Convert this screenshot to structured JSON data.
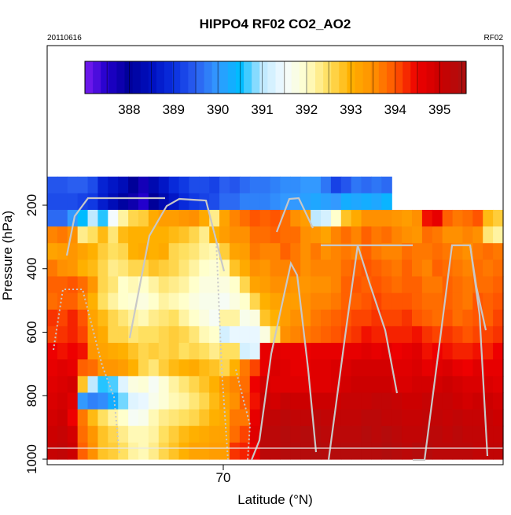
{
  "chart_data": {
    "type": "heatmap",
    "title": "HIPPO4 RF02 CO2_AO2",
    "date": "20110616",
    "flight": "RF02",
    "xlabel": "Latitude (°N)",
    "ylabel": "Pressure (hPa)",
    "x_ticks": [
      70
    ],
    "y_ticks": [
      200,
      400,
      600,
      800,
      1000
    ],
    "ylim": [
      100,
      1000
    ],
    "y_reversed": true,
    "grid": false,
    "legend": "colorbar-top",
    "colorbar": {
      "min": 387,
      "max": 395.6,
      "tick_values": [
        388,
        389,
        390,
        391,
        392,
        393,
        394,
        395
      ],
      "tick_labels": [
        "388",
        "389",
        "390",
        "391",
        "392",
        "393",
        "394",
        "395"
      ]
    },
    "cells_pressure_range": [
      110,
      1000
    ],
    "column_values": [
      {
        "top": 200,
        "vals": [
          389.4,
          389.3,
          389.6,
          393.6,
          393.2,
          393.7,
          393.9,
          393.8,
          394.2,
          394.1,
          394.5,
          394.6,
          394.7,
          394.8,
          394.9,
          395.0,
          395.1
        ]
      },
      {
        "top": 200,
        "vals": [
          389.4,
          389.3,
          389.6,
          393.7,
          393.3,
          393.5,
          393.9,
          393.9,
          394.1,
          394.2,
          394.4,
          394.7,
          394.8,
          394.9,
          395.0,
          395.1,
          395.2
        ]
      },
      {
        "top": 200,
        "vals": [
          389.5,
          389.3,
          390.0,
          393.5,
          393.4,
          393.4,
          394.0,
          393.9,
          394.3,
          394.3,
          394.5,
          394.6,
          394.9,
          394.7,
          394.5,
          394.9,
          395.0
        ]
      },
      {
        "top": 200,
        "vals": [
          389.5,
          389.2,
          390.5,
          392.3,
          393.2,
          393.0,
          393.8,
          393.6,
          394.0,
          394.1,
          394.4,
          393.9,
          392.8,
          390.0,
          393.7,
          393.8,
          393.9
        ]
      },
      {
        "top": 200,
        "vals": [
          389.3,
          389.1,
          391.0,
          392.5,
          393.0,
          392.9,
          393.4,
          393.0,
          393.2,
          393.3,
          393.4,
          393.8,
          391.0,
          389.8,
          392.9,
          393.4,
          393.5
        ]
      },
      {
        "top": 200,
        "vals": [
          388.8,
          388.7,
          390.6,
          392.9,
          392.7,
          392.6,
          392.6,
          392.5,
          392.9,
          393.1,
          393.2,
          393.4,
          390.6,
          389.9,
          392.5,
          392.8,
          392.8
        ]
      },
      {
        "top": 200,
        "vals": [
          388.6,
          388.4,
          391.5,
          392.4,
          392.5,
          392.3,
          392.4,
          392.2,
          392.6,
          392.6,
          393.1,
          393.4,
          390.7,
          390.3,
          392.2,
          392.6,
          392.7
        ]
      },
      {
        "top": 200,
        "vals": [
          388.4,
          388.1,
          392.2,
          392.9,
          392.6,
          392.4,
          392.0,
          392.0,
          392.4,
          392.6,
          393.0,
          393.3,
          391.3,
          390.8,
          392.0,
          392.3,
          392.5
        ]
      },
      {
        "top": 200,
        "vals": [
          388.0,
          387.8,
          392.6,
          393.0,
          393.0,
          392.6,
          392.1,
          391.9,
          392.2,
          392.4,
          392.8,
          393.0,
          391.8,
          391.3,
          391.6,
          392.1,
          392.2
        ]
      },
      {
        "top": 200,
        "vals": [
          387.7,
          387.5,
          392.7,
          393.0,
          393.1,
          392.6,
          392.0,
          391.8,
          392.1,
          392.5,
          392.6,
          392.6,
          391.9,
          391.4,
          391.7,
          392.1,
          392.1
        ]
      },
      {
        "top": 200,
        "vals": [
          388.3,
          388.0,
          393.1,
          393.0,
          393.0,
          392.8,
          392.2,
          392.0,
          392.3,
          392.5,
          392.7,
          392.4,
          391.6,
          391.7,
          392.1,
          392.2,
          392.3
        ]
      },
      {
        "top": 200,
        "vals": [
          388.6,
          388.3,
          393.3,
          393.0,
          393.1,
          392.7,
          392.4,
          392.2,
          392.4,
          392.6,
          392.6,
          392.7,
          391.9,
          391.9,
          392.3,
          392.5,
          392.6
        ]
      },
      {
        "top": 200,
        "vals": [
          388.9,
          388.6,
          393.3,
          392.9,
          392.6,
          392.6,
          392.3,
          392.1,
          392.5,
          392.7,
          392.7,
          392.9,
          392.2,
          392.1,
          392.4,
          392.7,
          392.8
        ]
      },
      {
        "top": 200,
        "vals": [
          389.1,
          388.9,
          393.4,
          392.8,
          392.5,
          392.4,
          392.2,
          392.0,
          392.2,
          392.6,
          392.5,
          393.0,
          392.4,
          392.2,
          392.5,
          392.9,
          393.0
        ]
      },
      {
        "top": 200,
        "vals": [
          389.3,
          389.1,
          393.5,
          392.6,
          392.4,
          392.2,
          392.0,
          391.8,
          392.0,
          392.4,
          392.6,
          393.1,
          392.6,
          392.4,
          392.6,
          393.0,
          393.2
        ]
      },
      {
        "top": 200,
        "vals": [
          389.3,
          389.2,
          393.1,
          392.3,
          392.2,
          392.0,
          391.8,
          391.7,
          391.8,
          392.1,
          392.5,
          392.9,
          392.8,
          392.6,
          392.8,
          393.1,
          393.2
        ]
      },
      {
        "top": 200,
        "vals": [
          389.2,
          389.3,
          392.3,
          393.0,
          392.1,
          391.9,
          391.8,
          391.7,
          391.6,
          392.0,
          392.3,
          392.8,
          393.0,
          392.9,
          393.0,
          393.2,
          393.3
        ]
      },
      {
        "top": 200,
        "vals": [
          389.5,
          389.6,
          393.2,
          393.3,
          392.7,
          392.1,
          391.8,
          391.6,
          392.2,
          391.2,
          392.5,
          392.6,
          393.4,
          393.2,
          393.1,
          393.2,
          393.3
        ]
      },
      {
        "top": 200,
        "vals": [
          389.4,
          389.6,
          393.6,
          393.5,
          393.2,
          392.8,
          392.0,
          391.8,
          392.2,
          391.4,
          392.5,
          393.0,
          393.6,
          393.5,
          393.7,
          393.8,
          394.2
        ]
      },
      {
        "top": 200,
        "vals": [
          389.6,
          389.8,
          393.8,
          393.5,
          393.3,
          393.1,
          392.6,
          392.0,
          391.7,
          391.4,
          391.2,
          393.7,
          393.8,
          393.9,
          393.7,
          394.1,
          394.3
        ]
      },
      {
        "top": 200,
        "vals": [
          389.7,
          389.8,
          394.0,
          393.8,
          393.7,
          393.5,
          393.2,
          392.6,
          391.8,
          391.4,
          391.3,
          394.1,
          394.5,
          394.4,
          394.6,
          394.7,
          394.6
        ]
      },
      {
        "top": 200,
        "vals": [
          389.7,
          389.8,
          393.9,
          393.8,
          393.6,
          393.4,
          393.3,
          393.0,
          392.8,
          391.8,
          394.6,
          394.6,
          394.9,
          395.1,
          395.2,
          395.3,
          395.3
        ]
      },
      {
        "top": 200,
        "vals": [
          389.8,
          389.9,
          394.0,
          393.9,
          393.6,
          393.6,
          393.5,
          393.2,
          393.0,
          392.5,
          394.7,
          394.8,
          394.7,
          394.9,
          395.2,
          395.3,
          395.3
        ]
      },
      {
        "top": 200,
        "vals": [
          389.9,
          390.0,
          393.8,
          393.8,
          393.9,
          393.6,
          393.5,
          393.3,
          393.3,
          393.5,
          394.6,
          394.7,
          394.7,
          395.1,
          395.3,
          395.4,
          395.4
        ]
      },
      {
        "top": 200,
        "vals": [
          389.9,
          390.0,
          393.5,
          393.8,
          393.7,
          393.7,
          393.4,
          393.3,
          393.5,
          393.6,
          394.6,
          394.6,
          394.7,
          395.0,
          395.2,
          395.3,
          395.4
        ]
      },
      {
        "top": 200,
        "vals": [
          390.0,
          390.1,
          393.3,
          393.5,
          393.5,
          393.5,
          393.4,
          393.5,
          393.5,
          393.7,
          394.5,
          394.6,
          394.7,
          395.0,
          395.2,
          395.4,
          395.4
        ]
      },
      {
        "top": 200,
        "vals": [
          390.0,
          390.2,
          391.0,
          393.4,
          393.7,
          393.6,
          393.5,
          393.6,
          393.7,
          393.8,
          394.6,
          394.7,
          394.7,
          395.0,
          395.3,
          395.4,
          395.5
        ]
      },
      {
        "top": 200,
        "vals": [
          389.7,
          390.1,
          391.2,
          393.2,
          393.5,
          393.6,
          393.5,
          393.6,
          393.8,
          393.9,
          394.6,
          394.7,
          394.7,
          395.0,
          395.2,
          395.3,
          395.4
        ]
      },
      {
        "top": 200,
        "vals": [
          389.2,
          390.0,
          392.0,
          393.6,
          393.6,
          393.6,
          393.6,
          393.7,
          393.9,
          394.0,
          394.6,
          394.8,
          394.8,
          395.0,
          395.2,
          395.3,
          395.4
        ]
      },
      {
        "top": 200,
        "vals": [
          389.4,
          390.3,
          392.8,
          393.8,
          393.7,
          393.8,
          393.9,
          393.9,
          394.0,
          394.1,
          394.6,
          394.8,
          394.9,
          395.1,
          395.2,
          395.3,
          395.4
        ]
      },
      {
        "top": 200,
        "vals": [
          389.7,
          390.2,
          393.1,
          393.6,
          393.6,
          393.9,
          394.0,
          393.9,
          394.1,
          394.2,
          394.6,
          394.9,
          395.0,
          395.1,
          395.2,
          395.3,
          395.4
        ]
      },
      {
        "top": 200,
        "vals": [
          389.6,
          390.3,
          393.5,
          393.9,
          393.9,
          394.0,
          393.9,
          394.0,
          394.1,
          394.4,
          394.7,
          394.9,
          395.0,
          395.1,
          395.3,
          395.4,
          395.4
        ]
      },
      {
        "top": 200,
        "vals": [
          389.7,
          390.2,
          393.5,
          393.7,
          393.7,
          393.9,
          394.0,
          394.1,
          394.2,
          394.3,
          394.6,
          394.9,
          395.0,
          395.2,
          395.3,
          395.3,
          395.4
        ]
      },
      {
        "top": 200,
        "vals": [
          389.6,
          390.4,
          393.5,
          393.8,
          393.6,
          393.8,
          393.9,
          394.0,
          394.1,
          394.3,
          394.7,
          394.9,
          395.0,
          395.2,
          395.2,
          395.4,
          395.5
        ]
      },
      {
        "top": null,
        "vals": [
          null,
          null,
          393.4,
          393.6,
          393.6,
          393.7,
          393.8,
          394.0,
          394.1,
          394.3,
          394.5,
          394.7,
          394.8,
          395.1,
          395.2,
          395.3,
          395.4
        ]
      },
      {
        "top": null,
        "vals": [
          null,
          null,
          393.3,
          393.5,
          393.8,
          393.9,
          393.9,
          394.0,
          394.2,
          394.3,
          394.6,
          394.7,
          394.8,
          395.0,
          395.1,
          395.2,
          395.3
        ]
      },
      {
        "top": null,
        "vals": [
          null,
          null,
          393.5,
          393.4,
          393.7,
          393.7,
          393.9,
          393.9,
          394.0,
          394.4,
          394.7,
          394.8,
          394.9,
          395.0,
          395.1,
          395.2,
          395.4
        ]
      },
      {
        "top": null,
        "vals": [
          null,
          null,
          394.4,
          393.8,
          393.7,
          393.6,
          393.7,
          393.8,
          393.9,
          394.2,
          394.4,
          394.6,
          394.9,
          395.1,
          395.2,
          395.3,
          395.4
        ]
      },
      {
        "top": null,
        "vals": [
          null,
          null,
          394.6,
          393.7,
          393.8,
          393.9,
          393.7,
          393.8,
          393.8,
          394.1,
          394.5,
          394.7,
          394.9,
          395.1,
          395.2,
          395.3,
          395.3
        ]
      },
      {
        "top": null,
        "vals": [
          null,
          null,
          393.9,
          393.5,
          393.7,
          393.8,
          393.9,
          393.9,
          394.0,
          394.2,
          394.4,
          394.8,
          395.0,
          395.1,
          395.1,
          395.2,
          395.3
        ]
      },
      {
        "top": null,
        "vals": [
          null,
          null,
          393.7,
          393.5,
          393.6,
          393.7,
          393.8,
          393.8,
          393.8,
          394.1,
          394.3,
          394.6,
          394.9,
          395.0,
          395.2,
          395.3,
          395.3
        ]
      },
      {
        "top": null,
        "vals": [
          null,
          null,
          393.8,
          393.6,
          393.5,
          393.6,
          393.7,
          393.7,
          393.9,
          394.0,
          394.3,
          394.5,
          394.8,
          394.9,
          395.1,
          395.2,
          395.3
        ]
      },
      {
        "top": null,
        "vals": [
          null,
          null,
          394.0,
          393.5,
          393.7,
          393.8,
          393.8,
          394.0,
          394.0,
          394.1,
          394.4,
          394.7,
          394.8,
          395.0,
          395.1,
          395.2,
          395.2
        ]
      },
      {
        "top": null,
        "vals": [
          null,
          null,
          392.9,
          392.4,
          393.8,
          393.7,
          393.8,
          393.9,
          393.9,
          394.1,
          394.3,
          394.6,
          394.8,
          395.0,
          395.1,
          395.1,
          395.2
        ]
      },
      {
        "top": null,
        "vals": [
          null,
          null,
          392.7,
          392.2,
          393.7,
          393.8,
          393.9,
          394.0,
          394.1,
          394.2,
          394.5,
          394.6,
          394.7,
          394.9,
          395.0,
          395.1,
          395.2
        ]
      }
    ]
  }
}
